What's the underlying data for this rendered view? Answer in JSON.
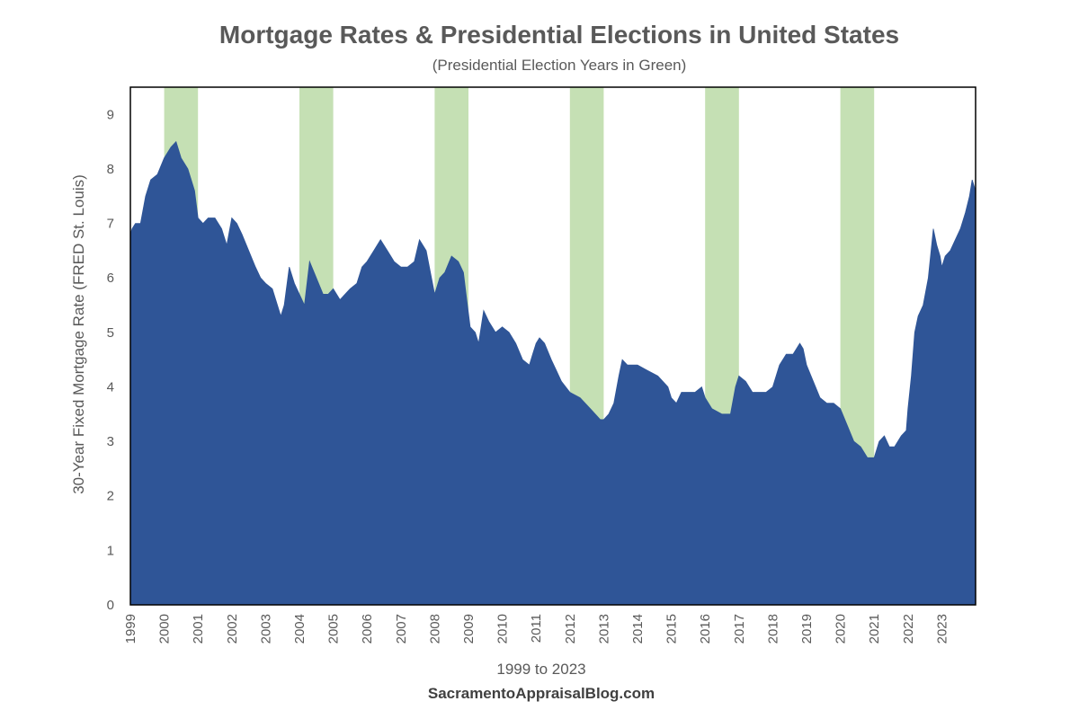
{
  "chart_data": {
    "type": "area",
    "title": "Mortgage Rates & Presidential Elections in United States",
    "subtitle": "(Presidential Election Years in Green)",
    "ylabel": "30-Year Fixed Mortgage Rate (FRED St. Louis)",
    "xlabel": "1999 to 2023",
    "source": "SacramentoAppraisalBlog.com",
    "ylim": [
      0,
      9.5
    ],
    "xlim": [
      1999,
      2024
    ],
    "y_ticks": [
      0,
      1,
      2,
      3,
      4,
      5,
      6,
      7,
      8,
      9
    ],
    "x_ticks": [
      "1999",
      "2000",
      "2001",
      "2002",
      "2003",
      "2004",
      "2005",
      "2006",
      "2007",
      "2008",
      "2009",
      "2010",
      "2011",
      "2012",
      "2013",
      "2014",
      "2015",
      "2016",
      "2017",
      "2018",
      "2019",
      "2020",
      "2021",
      "2022",
      "2023"
    ],
    "highlight_years": [
      2000,
      2004,
      2008,
      2012,
      2016,
      2020
    ],
    "highlight_label": "Presidential Election Years",
    "colors": {
      "area": "#2f5597",
      "highlight": "#c5e0b4",
      "axis": "#000000",
      "text": "#595959"
    },
    "series": [
      {
        "name": "30-Year Fixed Mortgage Rate",
        "x": [
          1999.0,
          1999.05,
          1999.15,
          1999.3,
          1999.45,
          1999.6,
          1999.8,
          2000.0,
          2000.2,
          2000.35,
          2000.5,
          2000.7,
          2000.9,
          2001.0,
          2001.15,
          2001.3,
          2001.5,
          2001.7,
          2001.85,
          2002.0,
          2002.15,
          2002.3,
          2002.5,
          2002.7,
          2002.85,
          2003.0,
          2003.2,
          2003.45,
          2003.55,
          2003.7,
          2003.85,
          2004.0,
          2004.15,
          2004.3,
          2004.5,
          2004.7,
          2004.85,
          2005.0,
          2005.2,
          2005.5,
          2005.7,
          2005.85,
          2006.0,
          2006.2,
          2006.4,
          2006.6,
          2006.8,
          2007.0,
          2007.2,
          2007.4,
          2007.55,
          2007.75,
          2008.0,
          2008.15,
          2008.3,
          2008.5,
          2008.7,
          2008.85,
          2008.95,
          2009.05,
          2009.2,
          2009.3,
          2009.45,
          2009.6,
          2009.8,
          2010.0,
          2010.2,
          2010.4,
          2010.6,
          2010.8,
          2010.9,
          2011.0,
          2011.1,
          2011.25,
          2011.45,
          2011.6,
          2011.75,
          2012.0,
          2012.3,
          2012.6,
          2012.9,
          2013.0,
          2013.15,
          2013.3,
          2013.45,
          2013.55,
          2013.7,
          2013.9,
          2014.0,
          2014.3,
          2014.6,
          2014.9,
          2015.0,
          2015.15,
          2015.3,
          2015.5,
          2015.7,
          2015.9,
          2016.0,
          2016.2,
          2016.5,
          2016.75,
          2016.9,
          2017.0,
          2017.2,
          2017.4,
          2017.6,
          2017.8,
          2018.0,
          2018.2,
          2018.4,
          2018.6,
          2018.8,
          2018.9,
          2019.0,
          2019.2,
          2019.4,
          2019.6,
          2019.8,
          2020.0,
          2020.2,
          2020.4,
          2020.6,
          2020.8,
          2021.0,
          2021.15,
          2021.3,
          2021.45,
          2021.6,
          2021.8,
          2021.95,
          2022.0,
          2022.1,
          2022.2,
          2022.3,
          2022.45,
          2022.6,
          2022.75,
          2022.85,
          2022.95,
          2023.0,
          2023.1,
          2023.25,
          2023.4,
          2023.55,
          2023.7,
          2023.82,
          2023.9,
          2024.0
        ],
        "values": [
          6.8,
          6.9,
          7.0,
          7.0,
          7.5,
          7.8,
          7.9,
          8.2,
          8.4,
          8.5,
          8.2,
          8.0,
          7.6,
          7.1,
          7.0,
          7.1,
          7.1,
          6.9,
          6.6,
          7.1,
          7.0,
          6.8,
          6.5,
          6.2,
          6.0,
          5.9,
          5.8,
          5.3,
          5.5,
          6.2,
          5.9,
          5.7,
          5.5,
          6.3,
          6.0,
          5.7,
          5.7,
          5.8,
          5.6,
          5.8,
          5.9,
          6.2,
          6.3,
          6.5,
          6.7,
          6.5,
          6.3,
          6.2,
          6.2,
          6.3,
          6.7,
          6.5,
          5.7,
          6.0,
          6.1,
          6.4,
          6.3,
          6.1,
          5.6,
          5.1,
          5.0,
          4.8,
          5.4,
          5.2,
          5.0,
          5.1,
          5.0,
          4.8,
          4.5,
          4.4,
          4.6,
          4.8,
          4.9,
          4.8,
          4.5,
          4.3,
          4.1,
          3.9,
          3.8,
          3.6,
          3.4,
          3.4,
          3.5,
          3.7,
          4.2,
          4.5,
          4.4,
          4.4,
          4.4,
          4.3,
          4.2,
          4.0,
          3.8,
          3.7,
          3.9,
          3.9,
          3.9,
          4.0,
          3.8,
          3.6,
          3.5,
          3.5,
          4.0,
          4.2,
          4.1,
          3.9,
          3.9,
          3.9,
          4.0,
          4.4,
          4.6,
          4.6,
          4.8,
          4.7,
          4.4,
          4.1,
          3.8,
          3.7,
          3.7,
          3.6,
          3.3,
          3.0,
          2.9,
          2.7,
          2.7,
          3.0,
          3.1,
          2.9,
          2.9,
          3.1,
          3.2,
          3.6,
          4.2,
          5.0,
          5.3,
          5.5,
          6.0,
          6.9,
          6.6,
          6.4,
          6.2,
          6.4,
          6.5,
          6.7,
          6.9,
          7.2,
          7.5,
          7.8,
          7.6
        ]
      }
    ]
  }
}
